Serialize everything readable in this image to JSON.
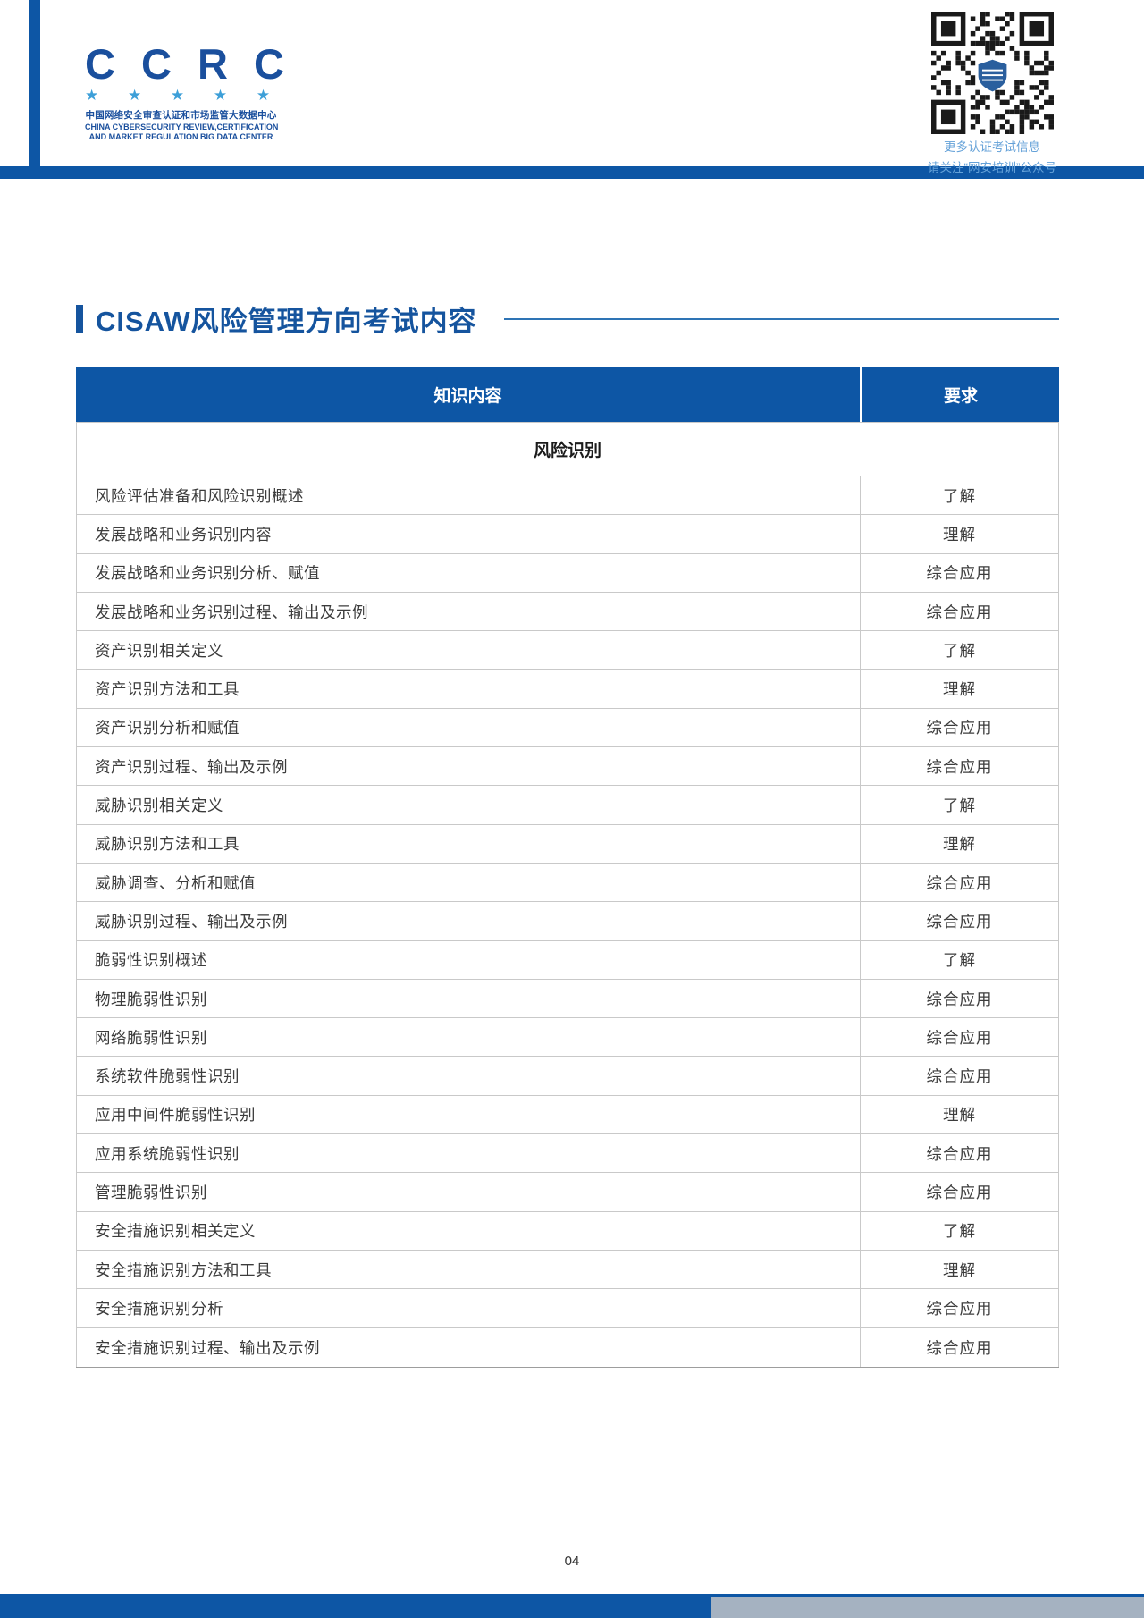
{
  "page": {
    "page_number": "04"
  },
  "logo": {
    "acronym": "C C R C",
    "stars": "★ ★ ★ ★ ★",
    "name_cn": "中国网络安全审查认证和市场监管大数据中心",
    "name_en_line1": "CHINA CYBERSECURITY REVIEW,CERTIFICATION",
    "name_en_line2": "AND MARKET REGULATION BIG DATA CENTER"
  },
  "qr": {
    "caption_line1": "更多认证考试信息",
    "caption_line2": "请关注“网安培训”公众号"
  },
  "section": {
    "title": "CISAW风险管理方向考试内容"
  },
  "table": {
    "headers": {
      "knowledge": "知识内容",
      "requirement": "要求"
    },
    "group_header": "风险识别",
    "rows": [
      {
        "content": "风险评估准备和风险识别概述",
        "requirement": "了解"
      },
      {
        "content": "发展战略和业务识别内容",
        "requirement": "理解"
      },
      {
        "content": "发展战略和业务识别分析、赋值",
        "requirement": "综合应用"
      },
      {
        "content": "发展战略和业务识别过程、输出及示例",
        "requirement": "综合应用"
      },
      {
        "content": "资产识别相关定义",
        "requirement": "了解"
      },
      {
        "content": "资产识别方法和工具",
        "requirement": "理解"
      },
      {
        "content": "资产识别分析和赋值",
        "requirement": "综合应用"
      },
      {
        "content": "资产识别过程、输出及示例",
        "requirement": "综合应用"
      },
      {
        "content": "威胁识别相关定义",
        "requirement": "了解"
      },
      {
        "content": "威胁识别方法和工具",
        "requirement": "理解"
      },
      {
        "content": "威胁调查、分析和赋值",
        "requirement": "综合应用"
      },
      {
        "content": "威胁识别过程、输出及示例",
        "requirement": "综合应用"
      },
      {
        "content": "脆弱性识别概述",
        "requirement": "了解"
      },
      {
        "content": "物理脆弱性识别",
        "requirement": "综合应用"
      },
      {
        "content": "网络脆弱性识别",
        "requirement": "综合应用"
      },
      {
        "content": "系统软件脆弱性识别",
        "requirement": "综合应用"
      },
      {
        "content": "应用中间件脆弱性识别",
        "requirement": "理解"
      },
      {
        "content": "应用系统脆弱性识别",
        "requirement": "综合应用"
      },
      {
        "content": "管理脆弱性识别",
        "requirement": "综合应用"
      },
      {
        "content": "安全措施识别相关定义",
        "requirement": "了解"
      },
      {
        "content": "安全措施识别方法和工具",
        "requirement": "理解"
      },
      {
        "content": "安全措施识别分析",
        "requirement": "综合应用"
      },
      {
        "content": "安全措施识别过程、输出及示例",
        "requirement": "综合应用"
      }
    ]
  },
  "colors": {
    "primary_blue": "#0d56a5",
    "title_blue": "#15549e",
    "logo_blue": "#1a4f9d",
    "star_blue": "#3d9fd8",
    "caption_blue": "#64a1d8",
    "border_grey": "#c9c9c9"
  }
}
